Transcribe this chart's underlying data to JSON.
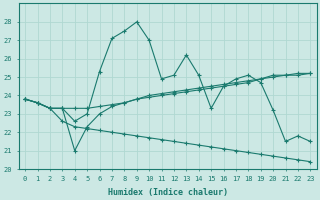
{
  "xlabel": "Humidex (Indice chaleur)",
  "bg_color": "#cce8e4",
  "grid_color": "#b0d8d2",
  "line_color": "#1a7a6e",
  "xlim": [
    -0.5,
    23.5
  ],
  "ylim": [
    20,
    29
  ],
  "xticks": [
    0,
    1,
    2,
    3,
    4,
    5,
    6,
    7,
    8,
    9,
    10,
    11,
    12,
    13,
    14,
    15,
    16,
    17,
    18,
    19,
    20,
    21,
    22,
    23
  ],
  "yticks": [
    20,
    21,
    22,
    23,
    24,
    25,
    26,
    27,
    28
  ],
  "line1_x": [
    0,
    1,
    2,
    3,
    4,
    5,
    6,
    7,
    8,
    9,
    10,
    11,
    12,
    13,
    14,
    15,
    16,
    17,
    18,
    19,
    20,
    21,
    22,
    23
  ],
  "line1_y": [
    23.8,
    23.6,
    23.3,
    23.3,
    22.6,
    23.0,
    25.3,
    27.1,
    27.5,
    28.0,
    27.0,
    24.9,
    25.1,
    26.2,
    25.1,
    23.3,
    24.5,
    24.9,
    25.1,
    24.7,
    23.2,
    21.5,
    21.8,
    21.5
  ],
  "line2_x": [
    0,
    1,
    2,
    3,
    4,
    5,
    6,
    7,
    8,
    9,
    10,
    11,
    12,
    13,
    14,
    15,
    16,
    17,
    18,
    19,
    20,
    21,
    22,
    23
  ],
  "line2_y": [
    23.8,
    23.6,
    23.3,
    23.3,
    23.3,
    23.3,
    23.4,
    23.5,
    23.6,
    23.8,
    23.9,
    24.0,
    24.1,
    24.2,
    24.3,
    24.4,
    24.5,
    24.6,
    24.7,
    24.9,
    25.1,
    25.1,
    25.1,
    25.2
  ],
  "line3_x": [
    0,
    1,
    2,
    3,
    4,
    5,
    6,
    7,
    8,
    9,
    10,
    11,
    12,
    13,
    14,
    15,
    16,
    17,
    18,
    19,
    20,
    21,
    22,
    23
  ],
  "line3_y": [
    23.8,
    23.6,
    23.3,
    23.3,
    21.0,
    22.3,
    23.0,
    23.4,
    23.6,
    23.8,
    24.0,
    24.1,
    24.2,
    24.3,
    24.4,
    24.5,
    24.6,
    24.7,
    24.8,
    24.9,
    25.0,
    25.1,
    25.2,
    25.2
  ],
  "line4_x": [
    0,
    1,
    2,
    3,
    4,
    5,
    6,
    7,
    8,
    9,
    10,
    11,
    12,
    13,
    14,
    15,
    16,
    17,
    18,
    19,
    20,
    21,
    22,
    23
  ],
  "line4_y": [
    23.8,
    23.6,
    23.3,
    22.6,
    22.3,
    22.2,
    22.1,
    22.0,
    21.9,
    21.8,
    21.7,
    21.6,
    21.5,
    21.4,
    21.3,
    21.2,
    21.1,
    21.0,
    20.9,
    20.8,
    20.7,
    20.6,
    20.5,
    20.4
  ]
}
